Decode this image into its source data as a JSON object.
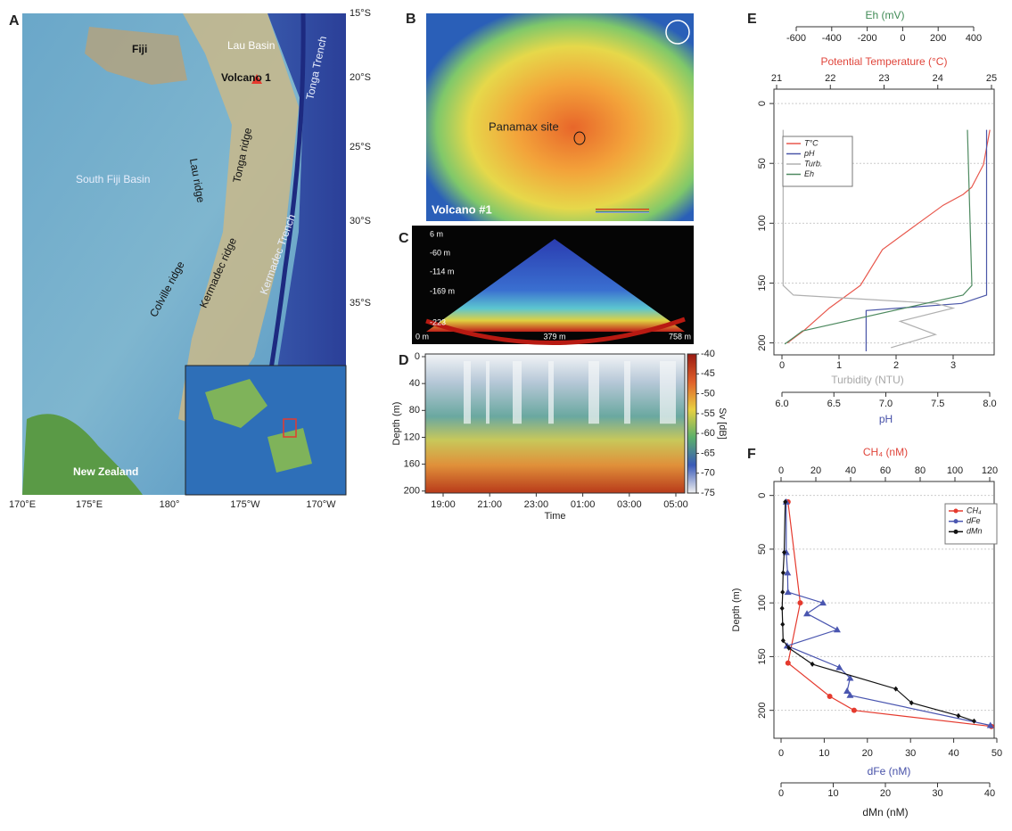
{
  "panels": {
    "A": {
      "label": "A",
      "places": [
        "Fiji",
        "Lau Basin",
        "Volcano 1",
        "Tonga Trench",
        "Lau ridge",
        "South Fiji Basin",
        "Tonga ridge",
        "Colville ridge",
        "Kermadec ridge",
        "Kermadec Trench",
        "New Zealand"
      ],
      "lat_ticks": [
        "15°S",
        "20°S",
        "25°S",
        "30°S",
        "35°S"
      ],
      "lon_ticks": [
        "170°E",
        "175°E",
        "180°",
        "175°W",
        "170°W"
      ]
    },
    "B": {
      "label": "B",
      "site": "Panamax site",
      "name": "Volcano #1"
    },
    "C": {
      "label": "C",
      "depth_labels": [
        "6 m",
        "-60 m",
        "-114 m",
        "-169 m",
        "-223"
      ],
      "distance_labels": [
        "0 m",
        "379 m",
        "758 m"
      ]
    }
  },
  "chart_data": [
    {
      "type": "echogram",
      "panel_label": "D",
      "ylabel": "Depth (m)",
      "xlabel": "Time",
      "categories": [
        "19:00",
        "21:00",
        "23:00",
        "01:00",
        "03:00",
        "05:00"
      ],
      "ylim": [
        203,
        -4
      ],
      "yticks": [
        0,
        40,
        80,
        120,
        160,
        200
      ],
      "colorbar_title": "Sv [dB]",
      "clim": [
        -75,
        -40
      ],
      "cticks": [
        -40,
        -45,
        -50,
        -55,
        -60,
        -65,
        -70,
        -75
      ]
    },
    {
      "type": "profile",
      "panel_label": "E",
      "ylim": [
        210,
        -12
      ],
      "yticks": [
        0,
        50,
        100,
        150,
        200
      ],
      "grid": true,
      "axes": [
        {
          "title": "Eh (mV)",
          "color": "#3f8a55",
          "xlim": [
            -600,
            400
          ],
          "xticks": [
            -600,
            -400,
            -200,
            0,
            200,
            400
          ]
        },
        {
          "title": "Potential Temperature (°C)",
          "color": "#e0463c",
          "xlim": [
            21,
            25
          ],
          "xticks": [
            21,
            22,
            23,
            24,
            25
          ]
        },
        {
          "title": "Turbidity (NTU)",
          "color": "#a8a8a8",
          "xlim": [
            0,
            3
          ],
          "xticks": [
            0,
            1,
            2,
            3
          ]
        },
        {
          "title": "pH",
          "color": "#4650a8",
          "xlim": [
            6,
            8
          ],
          "xticks": [
            {
              "value": 6,
              "label": "6.0"
            },
            {
              "value": 6.5,
              "label": "6.5"
            },
            {
              "value": 7,
              "label": "7.0"
            },
            {
              "value": 7.5,
              "label": "7.5"
            },
            {
              "value": 8,
              "label": "8.0"
            }
          ]
        }
      ],
      "series": [
        {
          "name": "T°C",
          "color": "#e8574c",
          "axis": 1,
          "y": [
            22,
            51,
            70,
            76,
            85,
            100,
            122,
            152,
            171,
            190,
            200
          ],
          "x": [
            24.97,
            24.85,
            24.63,
            24.47,
            24.1,
            23.64,
            22.97,
            22.56,
            21.98,
            21.5,
            21.2
          ]
        },
        {
          "name": "pH",
          "color": "#4a56a8",
          "axis": 3,
          "y": [
            22,
            160,
            167,
            173,
            207
          ],
          "x": [
            7.97,
            7.97,
            7.73,
            6.81,
            6.81
          ]
        },
        {
          "name": "Turb.",
          "color": "#b0b0b0",
          "axis": 2,
          "y": [
            22,
            152,
            160,
            167,
            171,
            182,
            193,
            204
          ],
          "x": [
            0.02,
            0.02,
            0.2,
            2.7,
            3.0,
            2.07,
            2.69,
            1.91
          ]
        },
        {
          "name": "Eh",
          "color": "#4e8a60",
          "axis": 0,
          "y": [
            22,
            152,
            160,
            190,
            201
          ],
          "x": [
            365,
            390,
            340,
            -565,
            -665
          ]
        }
      ]
    },
    {
      "type": "profile",
      "panel_label": "F",
      "ylabel": "Depth (m)",
      "ylim": [
        226,
        -13
      ],
      "yticks": [
        0,
        50,
        100,
        150,
        200
      ],
      "grid": true,
      "axes": [
        {
          "title": "CH₄ (nM)",
          "color": "#e0463c",
          "xlim": [
            0,
            120
          ],
          "xticks": [
            0,
            20,
            40,
            60,
            80,
            100,
            120
          ]
        },
        {
          "title": "dFe (nM)",
          "color": "#4650a8",
          "xlim": [
            0,
            50
          ],
          "xticks": [
            0,
            10,
            20,
            30,
            40,
            50
          ]
        },
        {
          "title": "dMn (nM)",
          "color": "#222222",
          "xlim": [
            0,
            40
          ],
          "xticks": [
            0,
            10,
            20,
            30,
            40
          ]
        }
      ],
      "series": [
        {
          "name": "CH₄",
          "color": "#e53a2e",
          "axis": 0,
          "marker": "circle",
          "y": [
            6,
            100,
            156,
            187,
            200,
            215
          ],
          "x": [
            4,
            11,
            4,
            28,
            42,
            121
          ]
        },
        {
          "name": "dFe",
          "color": "#4a56b0",
          "axis": 1,
          "marker": "triangle",
          "y": [
            6,
            53,
            72,
            90,
            100,
            110,
            125,
            140,
            160,
            170,
            182,
            186,
            214
          ],
          "x": [
            1.2,
            1.2,
            1.5,
            1.6,
            9.7,
            6.0,
            13.0,
            1.4,
            13.5,
            16.0,
            15.3,
            16.0,
            48.5
          ]
        },
        {
          "name": "dMn",
          "color": "#111111",
          "axis": 2,
          "marker": "diamond",
          "y": [
            6,
            53,
            72,
            90,
            105,
            120,
            135,
            142,
            157,
            180,
            193,
            205,
            210
          ],
          "x": [
            0.8,
            0.6,
            0.4,
            0.3,
            0.2,
            0.3,
            0.4,
            1.5,
            6,
            22,
            25,
            34,
            37
          ]
        }
      ]
    }
  ]
}
